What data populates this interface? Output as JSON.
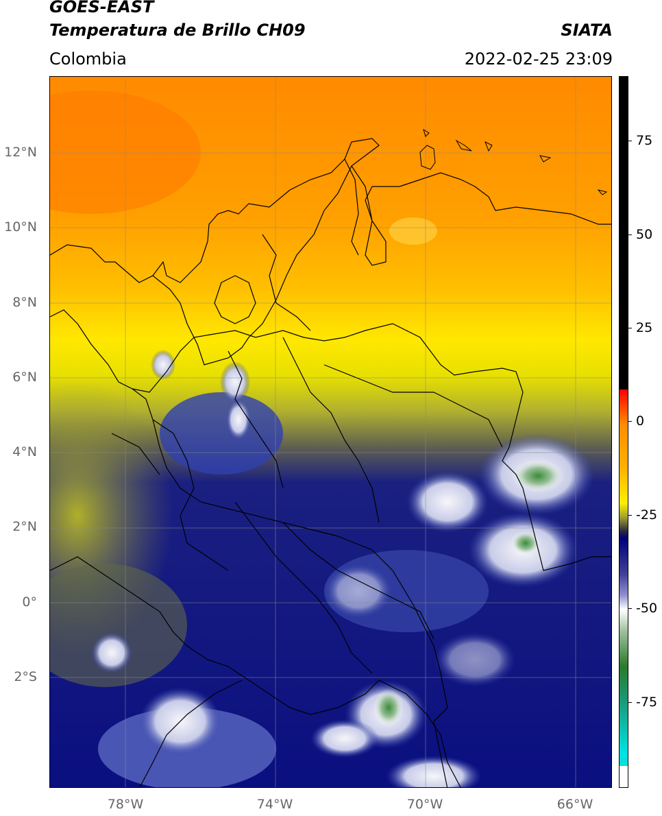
{
  "header": {
    "title_line1": "GOES-EAST",
    "title_line2": "Temperatura de Brillo CH09",
    "region": "Colombia",
    "brand": "SIATA",
    "datetime": "2022-02-25 23:09"
  },
  "map": {
    "lat_labels": [
      "12°N",
      "10°N",
      "8°N",
      "6°N",
      "4°N",
      "2°N",
      "0°",
      "2°S"
    ],
    "lon_labels": [
      "78°W",
      "74°W",
      "70°W",
      "66°W"
    ],
    "colors": {
      "warm_orange": "#ff8c00",
      "orange": "#ffa500",
      "yellow": "#ffee00",
      "olive": "#b8b830",
      "navy": "#0a0f80",
      "blue": "#2a3aa8",
      "white": "#f4f4f8",
      "green": "#3a8c3a"
    }
  },
  "colorbar": {
    "labels": [
      "75",
      "50",
      "25",
      "0",
      "-25",
      "-50",
      "-75"
    ],
    "stops": [
      {
        "color": "#000000"
      },
      {
        "color": "#ff0000"
      },
      {
        "color": "#ff8c00"
      },
      {
        "color": "#ffee00"
      },
      {
        "color": "#262640"
      },
      {
        "color": "#00007a"
      },
      {
        "color": "#8080c8"
      },
      {
        "color": "#ffffff"
      },
      {
        "color": "#2a7a2a"
      },
      {
        "color": "#00e0e0"
      },
      {
        "color": "#ffffff"
      }
    ]
  }
}
